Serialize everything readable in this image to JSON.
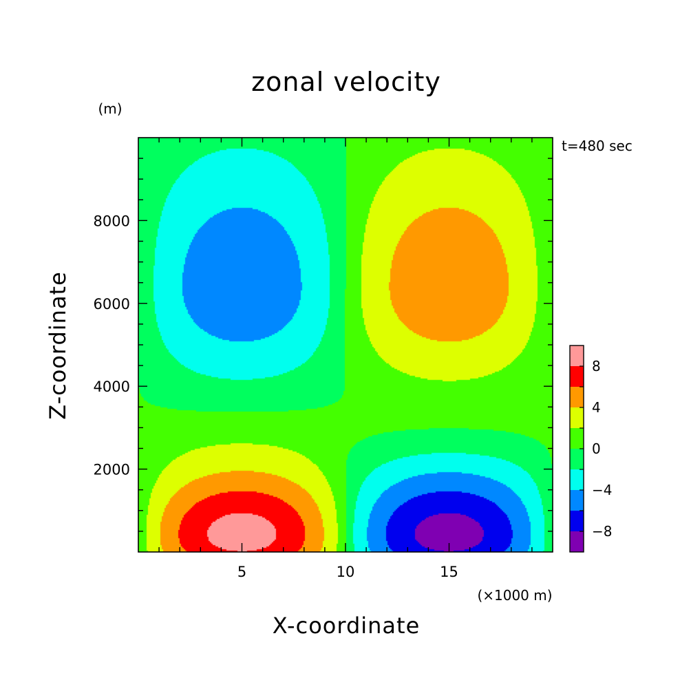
{
  "chart_data": {
    "type": "contour",
    "title": "zonal velocity",
    "xlabel": "X-coordinate",
    "ylabel": "Z-coordinate",
    "x_unit": "(×1000 m)",
    "y_unit": "(m)",
    "time_label": "t=480 sec",
    "xlim": [
      0,
      20
    ],
    "ylim": [
      0,
      10000
    ],
    "x_ticks": [
      5,
      10,
      15
    ],
    "y_ticks": [
      2000,
      4000,
      6000,
      8000
    ],
    "x_tick_labels": [
      "5",
      "10",
      "15"
    ],
    "y_tick_labels": [
      "2000",
      "4000",
      "6000",
      "8000"
    ],
    "colorbar": {
      "levels": [
        -10,
        -8,
        -6,
        -4,
        -2,
        0,
        2,
        4,
        6,
        8,
        10
      ],
      "colors": [
        "#7f00b2",
        "#0000ee",
        "#0088ff",
        "#00ffee",
        "#00ff5e",
        "#44ff00",
        "#ddff00",
        "#ff9900",
        "#ff0000",
        "#ff9999"
      ],
      "tick_values": [
        8,
        4,
        0,
        -4,
        -8
      ],
      "tick_labels": [
        "8",
        "4",
        "0",
        "−4",
        "−8"
      ]
    },
    "regions": [
      {
        "name": "upper-left-cell",
        "x_center": 6,
        "z_center": 6300,
        "min_value": -6,
        "max_value": -4,
        "band_level": -2
      },
      {
        "name": "upper-right-cell",
        "x_center": 14.3,
        "z_center": 6300,
        "min_value": 4,
        "max_value": 6,
        "band_level": 2
      },
      {
        "name": "lower-left-cell",
        "x_center": 6,
        "z_center": 0,
        "max_value": 10,
        "outer_band_level": 2
      },
      {
        "name": "lower-right-cell",
        "x_center": 14.3,
        "z_center": 0,
        "min_value": -10,
        "outer_band_level": -2
      }
    ],
    "grid": false,
    "legend": "colorbar-right"
  }
}
